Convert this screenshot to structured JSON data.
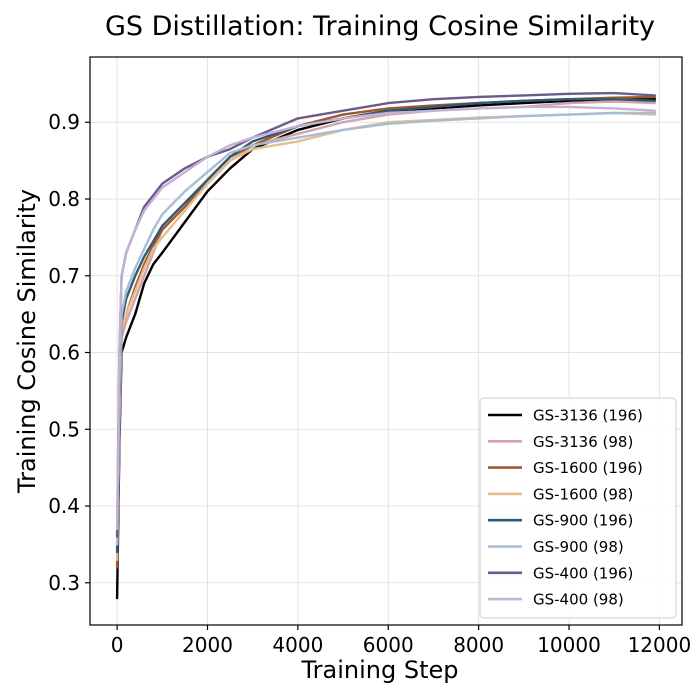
{
  "chart_data": {
    "type": "line",
    "title": "GS Distillation: Training Cosine Similarity",
    "xlabel": "Training Step",
    "ylabel": "Training Cosine Similarity",
    "xlim": [
      -600,
      12500
    ],
    "ylim": [
      0.245,
      0.985
    ],
    "xticks": [
      0,
      2000,
      4000,
      6000,
      8000,
      10000,
      12000
    ],
    "yticks": [
      0.3,
      0.4,
      0.5,
      0.6,
      0.7,
      0.8,
      0.9
    ],
    "grid": true,
    "legend_position": "lower-right",
    "x": [
      0,
      50,
      100,
      200,
      400,
      600,
      800,
      1000,
      1500,
      2000,
      2500,
      3000,
      4000,
      5000,
      6000,
      7000,
      8000,
      9000,
      10000,
      11000,
      11900
    ],
    "series": [
      {
        "name": "GS-3136 (196)",
        "color": "#000000",
        "values": [
          0.28,
          0.48,
          0.6,
          0.62,
          0.65,
          0.69,
          0.715,
          0.73,
          0.77,
          0.81,
          0.84,
          0.865,
          0.89,
          0.905,
          0.915,
          0.918,
          0.922,
          0.925,
          0.928,
          0.93,
          0.93
        ]
      },
      {
        "name": "GS-3136 (98)",
        "color": "#d4a3a8",
        "values": [
          0.33,
          0.5,
          0.62,
          0.64,
          0.67,
          0.7,
          0.73,
          0.76,
          0.79,
          0.82,
          0.85,
          0.87,
          0.885,
          0.9,
          0.91,
          0.915,
          0.918,
          0.92,
          0.925,
          0.927,
          0.925
        ]
      },
      {
        "name": "GS-1600 (196)",
        "color": "#a0582a",
        "values": [
          0.32,
          0.52,
          0.63,
          0.65,
          0.685,
          0.715,
          0.74,
          0.76,
          0.79,
          0.825,
          0.855,
          0.87,
          0.895,
          0.91,
          0.918,
          0.922,
          0.925,
          0.928,
          0.93,
          0.932,
          0.933
        ]
      },
      {
        "name": "GS-1600 (98)",
        "color": "#e6bd8d",
        "values": [
          0.33,
          0.52,
          0.63,
          0.65,
          0.68,
          0.71,
          0.735,
          0.75,
          0.785,
          0.82,
          0.85,
          0.865,
          0.875,
          0.89,
          0.9,
          0.903,
          0.906,
          0.908,
          0.91,
          0.912,
          0.91
        ]
      },
      {
        "name": "GS-900 (196)",
        "color": "#2f5a78",
        "values": [
          0.34,
          0.54,
          0.64,
          0.67,
          0.7,
          0.725,
          0.745,
          0.765,
          0.795,
          0.825,
          0.855,
          0.875,
          0.895,
          0.905,
          0.915,
          0.92,
          0.925,
          0.928,
          0.93,
          0.93,
          0.928
        ]
      },
      {
        "name": "GS-900 (98)",
        "color": "#a9bdd2",
        "values": [
          0.35,
          0.55,
          0.65,
          0.68,
          0.71,
          0.735,
          0.76,
          0.78,
          0.81,
          0.835,
          0.86,
          0.87,
          0.88,
          0.89,
          0.898,
          0.902,
          0.905,
          0.908,
          0.91,
          0.912,
          0.912
        ]
      },
      {
        "name": "GS-400 (196)",
        "color": "#6e5a8a",
        "values": [
          0.36,
          0.6,
          0.7,
          0.73,
          0.76,
          0.79,
          0.805,
          0.82,
          0.84,
          0.855,
          0.865,
          0.88,
          0.905,
          0.915,
          0.925,
          0.93,
          0.933,
          0.935,
          0.937,
          0.938,
          0.935
        ]
      },
      {
        "name": "GS-400 (98)",
        "color": "#c3b2d6",
        "values": [
          0.37,
          0.6,
          0.7,
          0.73,
          0.76,
          0.785,
          0.8,
          0.815,
          0.835,
          0.855,
          0.87,
          0.88,
          0.895,
          0.905,
          0.912,
          0.915,
          0.918,
          0.92,
          0.92,
          0.918,
          0.915
        ]
      }
    ]
  }
}
